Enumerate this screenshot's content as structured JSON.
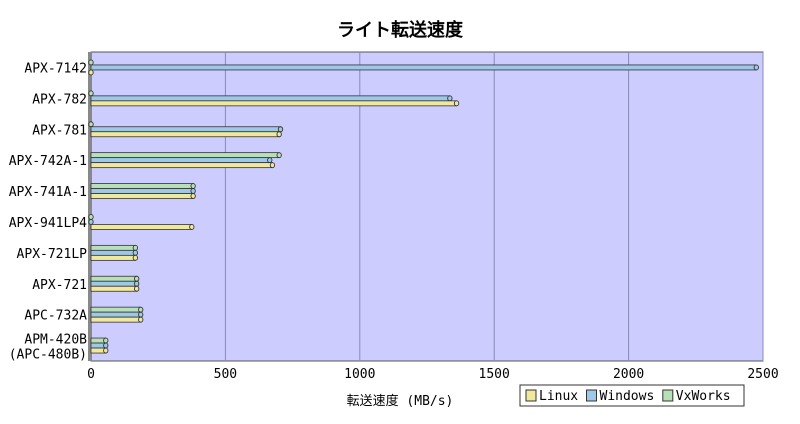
{
  "chart_data": {
    "type": "bar",
    "orientation": "horizontal",
    "title": "ライト転送速度",
    "xlabel": "転送速度 (MB/s)",
    "ylabel": "",
    "xlim": [
      0,
      2500
    ],
    "x_ticks": [
      "0",
      "500",
      "1000",
      "1500",
      "2000",
      "2500"
    ],
    "grid": true,
    "legend_position": "bottom-right",
    "categories": [
      "APX-7142",
      "APX-782",
      "APX-781",
      "APX-742A-1",
      "APX-741A-1",
      "APX-941LP4",
      "APX-721LP",
      "APX-721",
      "APC-732A",
      "APM-420B\n(APC-480B)"
    ],
    "series": [
      {
        "name": "VxWorks",
        "color": "#b8e0b8",
        "values": [
          0,
          0,
          0,
          700,
          380,
          0,
          165,
          170,
          185,
          55
        ]
      },
      {
        "name": "Windows",
        "color": "#9ec8e8",
        "values": [
          2475,
          1335,
          705,
          665,
          380,
          0,
          165,
          170,
          185,
          55
        ]
      },
      {
        "name": "Linux",
        "color": "#f0e89c",
        "values": [
          0,
          1360,
          700,
          675,
          380,
          375,
          165,
          170,
          185,
          55
        ]
      }
    ],
    "legend_order": [
      "Linux",
      "Windows",
      "VxWorks"
    ],
    "plot_background": "#ccccff"
  }
}
